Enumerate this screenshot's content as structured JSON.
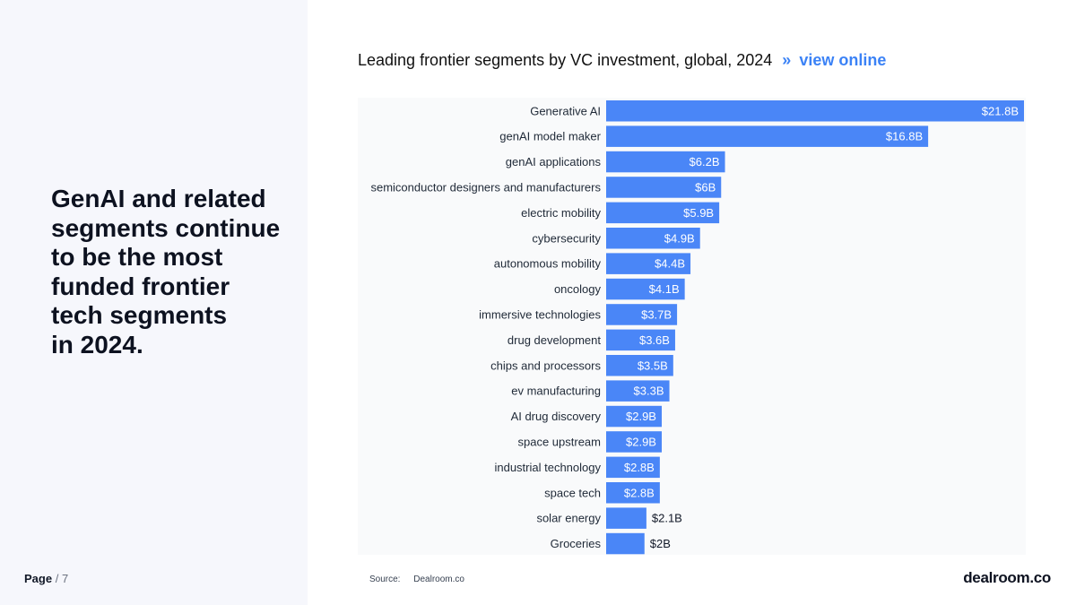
{
  "headline": "GenAI and related\nsegments continue\nto be the most\nfunded frontier\ntech segments\nin 2024.",
  "page": {
    "label": "Page",
    "separator": "/",
    "number": "7"
  },
  "chart_header": {
    "title": "Leading frontier segments by VC investment, global, 2024",
    "link_marker": "»",
    "link_text": "view online"
  },
  "source": {
    "label": "Source:",
    "value": "Dealroom.co"
  },
  "logo_text": "dealroom.co",
  "colors": {
    "bar": "#4a86f7",
    "panel": "#f6f7fc",
    "accent": "#3b82f6"
  },
  "chart_data": {
    "type": "bar",
    "orientation": "horizontal",
    "title": "Leading frontier segments by VC investment, global, 2024",
    "xlabel": "",
    "ylabel": "",
    "unit": "USD billions",
    "xlim": [
      0,
      21.8
    ],
    "grid": false,
    "legend": "none",
    "categories": [
      "Generative AI",
      "genAI model maker",
      "genAI applications",
      "semiconductor designers and manufacturers",
      "electric mobility",
      "cybersecurity",
      "autonomous mobility",
      "oncology",
      "immersive technologies",
      "drug development",
      "chips and processors",
      "ev manufacturing",
      "AI drug discovery",
      "space upstream",
      "industrial technology",
      "space tech",
      "solar energy",
      "Groceries"
    ],
    "values": [
      21.8,
      16.8,
      6.2,
      6,
      5.9,
      4.9,
      4.4,
      4.1,
      3.7,
      3.6,
      3.5,
      3.3,
      2.9,
      2.9,
      2.8,
      2.8,
      2.1,
      2
    ],
    "labels": [
      "$21.8B",
      "$16.8B",
      "$6.2B",
      "$6B",
      "$5.9B",
      "$4.9B",
      "$4.4B",
      "$4.1B",
      "$3.7B",
      "$3.6B",
      "$3.5B",
      "$3.3B",
      "$2.9B",
      "$2.9B",
      "$2.8B",
      "$2.8B",
      "$2.1B",
      "$2B"
    ]
  }
}
